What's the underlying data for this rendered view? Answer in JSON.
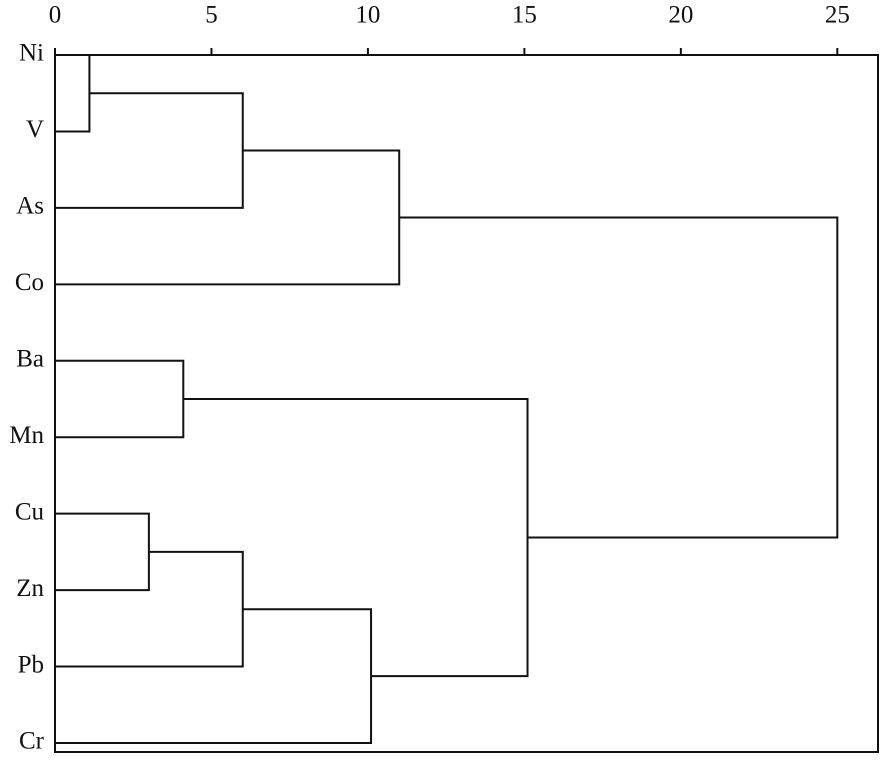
{
  "chart_data": {
    "type": "dendrogram",
    "xlim": [
      0,
      26.3
    ],
    "xticks": [
      0,
      5,
      10,
      15,
      20,
      25
    ],
    "tree": {
      "height": 25.0,
      "children": [
        {
          "height": 11.0,
          "children": [
            {
              "height": 6.0,
              "children": [
                {
                  "height": 1.1,
                  "children": [
                    {
                      "label": "Ni"
                    },
                    {
                      "label": "V"
                    }
                  ]
                },
                {
                  "label": "As"
                }
              ]
            },
            {
              "label": "Co"
            }
          ]
        },
        {
          "height": 15.1,
          "children": [
            {
              "height": 4.1,
              "children": [
                {
                  "label": "Ba"
                },
                {
                  "label": "Mn"
                }
              ]
            },
            {
              "height": 10.1,
              "children": [
                {
                  "height": 6.0,
                  "children": [
                    {
                      "height": 3.0,
                      "children": [
                        {
                          "label": "Cu"
                        },
                        {
                          "label": "Zn"
                        }
                      ]
                    },
                    {
                      "label": "Pb"
                    }
                  ]
                },
                {
                  "label": "Cr"
                }
              ]
            }
          ]
        }
      ]
    }
  }
}
